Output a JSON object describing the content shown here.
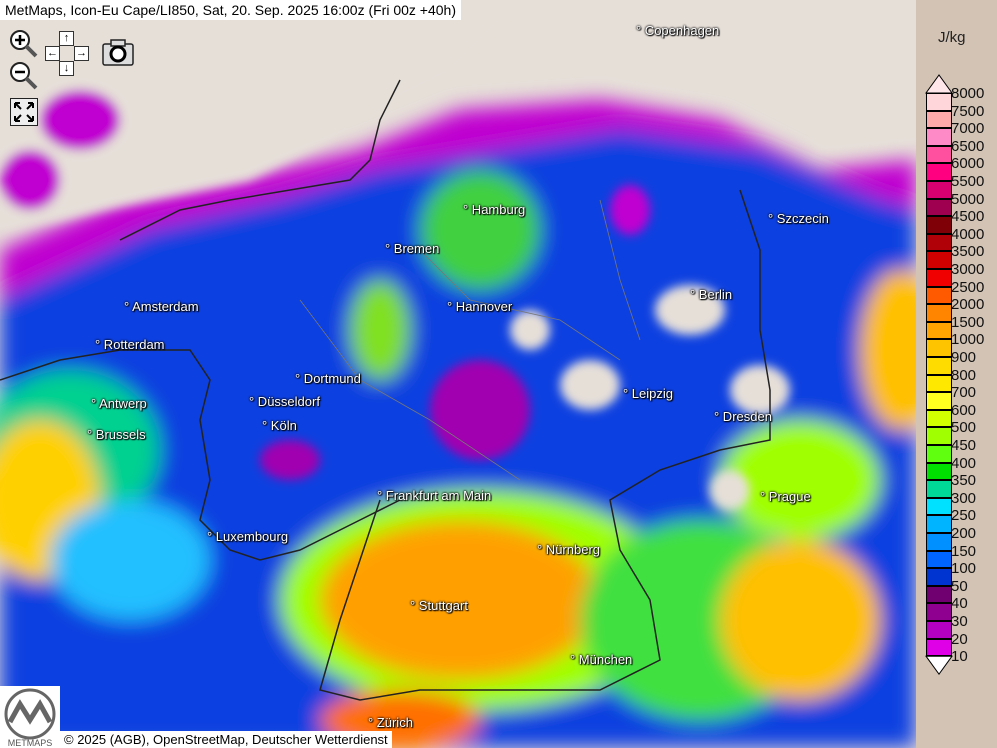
{
  "title": "MetMaps, Icon-Eu Cape/LI850, Sat, 20. Sep. 2025 16:00z (Fri 00z +40h)",
  "controls": {
    "zoom_in": "zoom-in-icon",
    "zoom_out": "zoom-out-icon",
    "pan_up": "↑",
    "pan_down": "↓",
    "pan_left": "←",
    "pan_right": "→",
    "screenshot": "camera-icon",
    "fullscreen": "fullscreen-icon"
  },
  "cities": [
    {
      "name": "Copenhagen"
    },
    {
      "name": "Hamburg"
    },
    {
      "name": "Bremen"
    },
    {
      "name": "Szczecin"
    },
    {
      "name": "Amsterdam"
    },
    {
      "name": "Hannover"
    },
    {
      "name": "Berlin"
    },
    {
      "name": "Rotterdam"
    },
    {
      "name": "Dortmund"
    },
    {
      "name": "Leipzig"
    },
    {
      "name": "Antwerp"
    },
    {
      "name": "Düsseldorf"
    },
    {
      "name": "Dresden"
    },
    {
      "name": "Brussels"
    },
    {
      "name": "Köln"
    },
    {
      "name": "Frankfurt am Main"
    },
    {
      "name": "Prague"
    },
    {
      "name": "Luxembourg"
    },
    {
      "name": "Nürnberg"
    },
    {
      "name": "Stuttgart"
    },
    {
      "name": "München"
    },
    {
      "name": "Zürich"
    }
  ],
  "footer": "© 2025 (AGB), OpenStreetMap, Deutscher Wetterdienst",
  "logo_text": "METMAPS",
  "legend": {
    "unit": "J/kg",
    "labels": [
      "8000",
      "7500",
      "7000",
      "6500",
      "6000",
      "5500",
      "5000",
      "4500",
      "4000",
      "3500",
      "3000",
      "2500",
      "2000",
      "1500",
      "1000",
      "900",
      "800",
      "700",
      "600",
      "500",
      "450",
      "400",
      "350",
      "300",
      "250",
      "200",
      "150",
      "100",
      "50",
      "40",
      "30",
      "20",
      "10"
    ],
    "colors": [
      "#ffd6da",
      "#ffaaaa",
      "#ff8ac8",
      "#ff50a0",
      "#ff0080",
      "#d80070",
      "#a00050",
      "#800008",
      "#b00008",
      "#d00000",
      "#f00000",
      "#ff5a00",
      "#ff8400",
      "#ffa400",
      "#ffc400",
      "#ffdc00",
      "#ffe800",
      "#ffff20",
      "#d2ff00",
      "#a0ff00",
      "#60ff10",
      "#00e000",
      "#00d898",
      "#00e0ff",
      "#00b4ff",
      "#0090ff",
      "#0064ff",
      "#0034d0",
      "#700070",
      "#900090",
      "#b400c0",
      "#e000e8"
    ],
    "top_arrow_color": "#ffe6ea",
    "bottom_arrow_color": "#ffffff"
  }
}
